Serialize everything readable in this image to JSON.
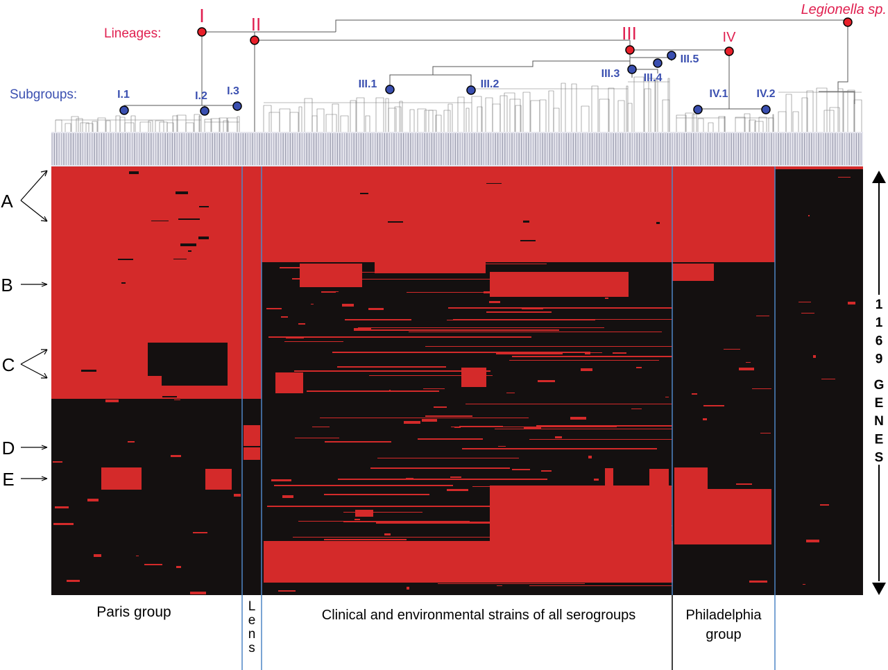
{
  "header": {
    "lineages_label": "Lineages:",
    "subgroups_label": "Subgroups:",
    "outgroup_label": "Legionella sp.",
    "lineages": [
      "I",
      "II",
      "III",
      "IV"
    ],
    "subgroups": [
      "I.1",
      "I.2",
      "I.3",
      "III.1",
      "III.2",
      "III.3",
      "III.4",
      "III.5",
      "IV.1",
      "IV.2"
    ]
  },
  "row_markers": [
    "A",
    "B",
    "C",
    "D",
    "E"
  ],
  "gene_axis": {
    "count": "1169",
    "word": "GENES"
  },
  "groups": {
    "paris": "Paris group",
    "lens": "Lens",
    "clinical": "Clinical and environmental strains of all serogroups",
    "philadelphia_line1": "Philadelphia",
    "philadelphia_line2": "group"
  },
  "colors": {
    "present": "#d42a2a",
    "absent": "#141010",
    "lineage_node": "#e8202a",
    "subgroup_node": "#3a4fb0",
    "lineage_text": "#e02050",
    "subgroup_text": "#3a4fb0",
    "divider": "#4f86c6"
  }
}
